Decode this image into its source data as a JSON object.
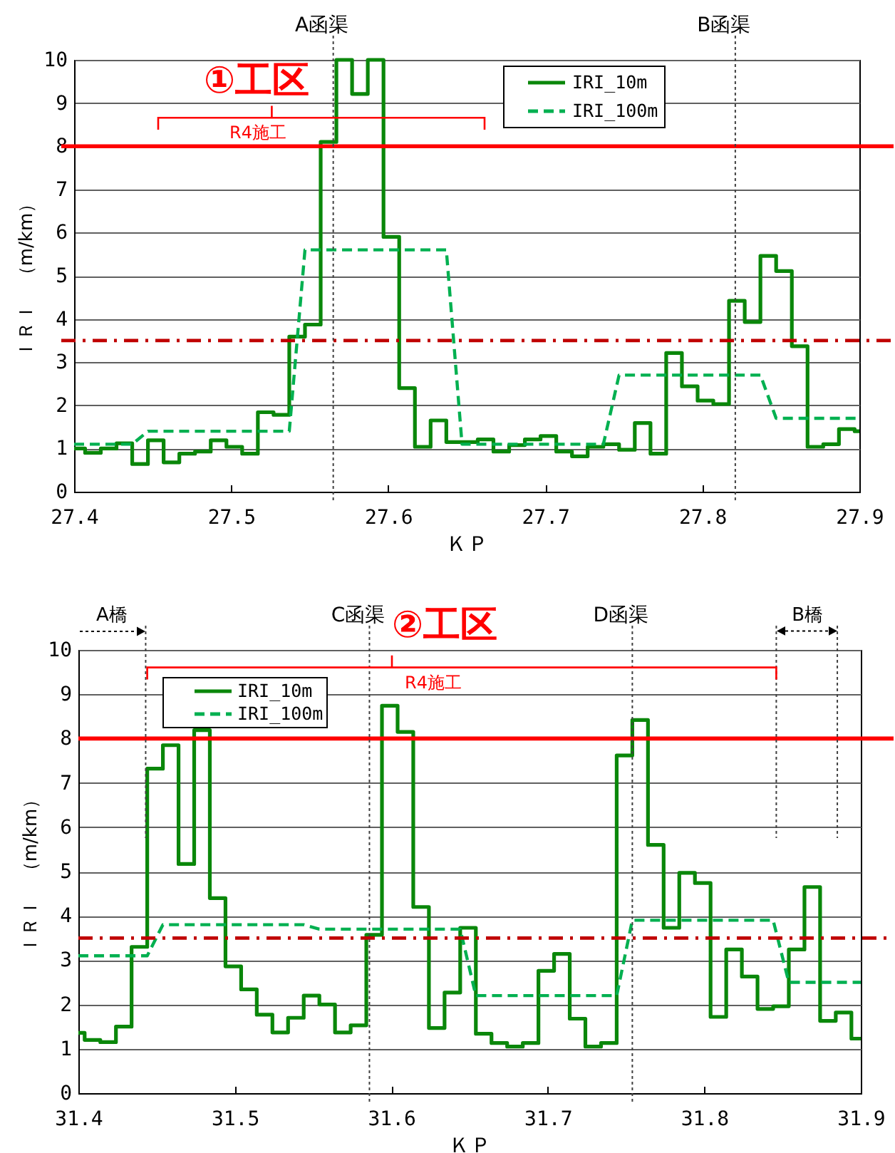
{
  "chart_data": [
    {
      "type": "line",
      "title": "①工区",
      "xlabel": "ＫＰ",
      "ylabel": "ＩＲＩ　（m/km）",
      "xlim": [
        27.4,
        27.9
      ],
      "xticks": [
        27.4,
        27.5,
        27.6,
        27.7,
        27.8,
        27.9
      ],
      "ylim": [
        0,
        10
      ],
      "yticks": [
        0,
        1,
        2,
        3,
        4,
        5,
        6,
        7,
        8,
        9,
        10
      ],
      "grid": "y",
      "legend": "top right",
      "series": [
        {
          "name": "IRI_10m",
          "type": "step",
          "line_style": "solid",
          "color": "#0a870a",
          "x": [
            27.4,
            27.407,
            27.417,
            27.427,
            27.437,
            27.447,
            27.457,
            27.467,
            27.477,
            27.487,
            27.497,
            27.507,
            27.517,
            27.527,
            27.537,
            27.547,
            27.557,
            27.567,
            27.577,
            27.587,
            27.597,
            27.607,
            27.617,
            27.627,
            27.637,
            27.647,
            27.657,
            27.667,
            27.677,
            27.687,
            27.697,
            27.707,
            27.717,
            27.727,
            27.737,
            27.747,
            27.757,
            27.767,
            27.777,
            27.787,
            27.797,
            27.807,
            27.817,
            27.827,
            27.837,
            27.847,
            27.857,
            27.867,
            27.877,
            27.887,
            27.897,
            27.9
          ],
          "values": [
            1.0,
            0.9,
            1.0,
            1.12,
            0.64,
            1.19,
            0.68,
            0.88,
            0.93,
            1.19,
            1.04,
            0.88,
            1.84,
            1.78,
            3.59,
            3.87,
            8.1,
            10,
            9.21,
            10,
            5.9,
            2.4,
            1.04,
            1.65,
            1.15,
            1.15,
            1.21,
            0.93,
            1.08,
            1.21,
            1.29,
            0.93,
            0.82,
            1.04,
            1.1,
            0.97,
            1.59,
            0.88,
            3.21,
            2.44,
            2.11,
            2.03,
            4.42,
            3.93,
            5.46,
            5.11,
            3.37,
            1.04,
            1.1,
            1.45,
            1.4,
            1.4
          ]
        },
        {
          "name": "IRI_100m",
          "line_style": "dashed",
          "color": "#00b050",
          "x": [
            27.4,
            27.437,
            27.447,
            27.537,
            27.547,
            27.637,
            27.647,
            27.737,
            27.747,
            27.837,
            27.847,
            27.9
          ],
          "values": [
            1.1,
            1.1,
            1.4,
            1.4,
            5.6,
            5.6,
            1.1,
            1.1,
            2.7,
            2.7,
            1.7,
            1.7
          ]
        }
      ],
      "ref_lines": [
        {
          "axis": "y",
          "value": 8,
          "color": "#ff0000",
          "line_style": "solid"
        },
        {
          "axis": "y",
          "value": 3.5,
          "color": "#c00000",
          "line_style": "dashed"
        },
        {
          "axis": "x",
          "value": 27.565,
          "label": "A函渠",
          "color": "#404040",
          "line_style": "dotted"
        },
        {
          "axis": "x",
          "value": 27.821,
          "label": "B函渠",
          "color": "#404040",
          "line_style": "dotted"
        }
      ],
      "annotations": [
        "R4施工"
      ]
    },
    {
      "type": "line",
      "title": "②工区",
      "xlabel": "ＫＰ",
      "ylabel": "ＩＲＩ　（m/km）",
      "xlim": [
        31.4,
        31.9
      ],
      "xticks": [
        31.4,
        31.5,
        31.6,
        31.7,
        31.8,
        31.9
      ],
      "ylim": [
        0,
        10
      ],
      "yticks": [
        0,
        1,
        2,
        3,
        4,
        5,
        6,
        7,
        8,
        9,
        10
      ],
      "grid": "y",
      "legend": "top left",
      "series": [
        {
          "name": "IRI_10m",
          "type": "step",
          "line_style": "solid",
          "color": "#0a870a",
          "x": [
            31.4,
            31.404,
            31.414,
            31.424,
            31.434,
            31.444,
            31.454,
            31.464,
            31.474,
            31.484,
            31.494,
            31.504,
            31.514,
            31.524,
            31.534,
            31.544,
            31.554,
            31.564,
            31.574,
            31.584,
            31.594,
            31.604,
            31.614,
            31.624,
            31.634,
            31.644,
            31.654,
            31.664,
            31.674,
            31.684,
            31.694,
            31.704,
            31.714,
            31.724,
            31.734,
            31.744,
            31.754,
            31.764,
            31.774,
            31.784,
            31.794,
            31.804,
            31.814,
            31.824,
            31.834,
            31.844,
            31.854,
            31.864,
            31.874,
            31.884,
            31.894,
            31.9
          ],
          "values": [
            1.36,
            1.2,
            1.15,
            1.5,
            3.3,
            7.32,
            7.85,
            5.17,
            8.19,
            4.4,
            2.86,
            2.34,
            1.77,
            1.37,
            1.7,
            2.2,
            2.0,
            1.37,
            1.53,
            3.57,
            8.74,
            8.15,
            4.2,
            1.47,
            2.27,
            3.73,
            1.34,
            1.13,
            1.05,
            1.13,
            2.76,
            3.14,
            1.68,
            1.05,
            1.13,
            7.62,
            8.42,
            5.6,
            3.73,
            4.97,
            4.74,
            1.72,
            3.24,
            2.63,
            1.9,
            1.96,
            3.24,
            4.65,
            1.63,
            1.82,
            1.23,
            1.23
          ]
        },
        {
          "name": "IRI_100m",
          "line_style": "dashed",
          "color": "#00b050",
          "x": [
            31.4,
            31.444,
            31.454,
            31.544,
            31.554,
            31.644,
            31.654,
            31.744,
            31.754,
            31.844,
            31.854,
            31.9
          ],
          "values": [
            3.1,
            3.1,
            3.8,
            3.8,
            3.7,
            3.7,
            2.2,
            2.2,
            3.9,
            3.9,
            2.5,
            2.5
          ]
        }
      ],
      "ref_lines": [
        {
          "axis": "y",
          "value": 8,
          "color": "#ff0000",
          "line_style": "solid"
        },
        {
          "axis": "y",
          "value": 3.5,
          "color": "#c00000",
          "line_style": "dashed"
        },
        {
          "axis": "x",
          "value": 31.586,
          "label": "C函渠",
          "color": "#404040",
          "line_style": "dotted"
        },
        {
          "axis": "x",
          "value": 31.754,
          "label": "D函渠",
          "color": "#404040",
          "line_style": "dotted"
        },
        {
          "axis": "x",
          "value": 31.443,
          "color": "#404040",
          "line_style": "dotted"
        },
        {
          "axis": "x",
          "value": 31.846,
          "color": "#404040",
          "line_style": "dotted"
        },
        {
          "axis": "x",
          "value": 31.885,
          "color": "#404040",
          "line_style": "dotted"
        }
      ],
      "annotations": [
        "A橋",
        "B橋",
        "R4施工"
      ]
    }
  ]
}
